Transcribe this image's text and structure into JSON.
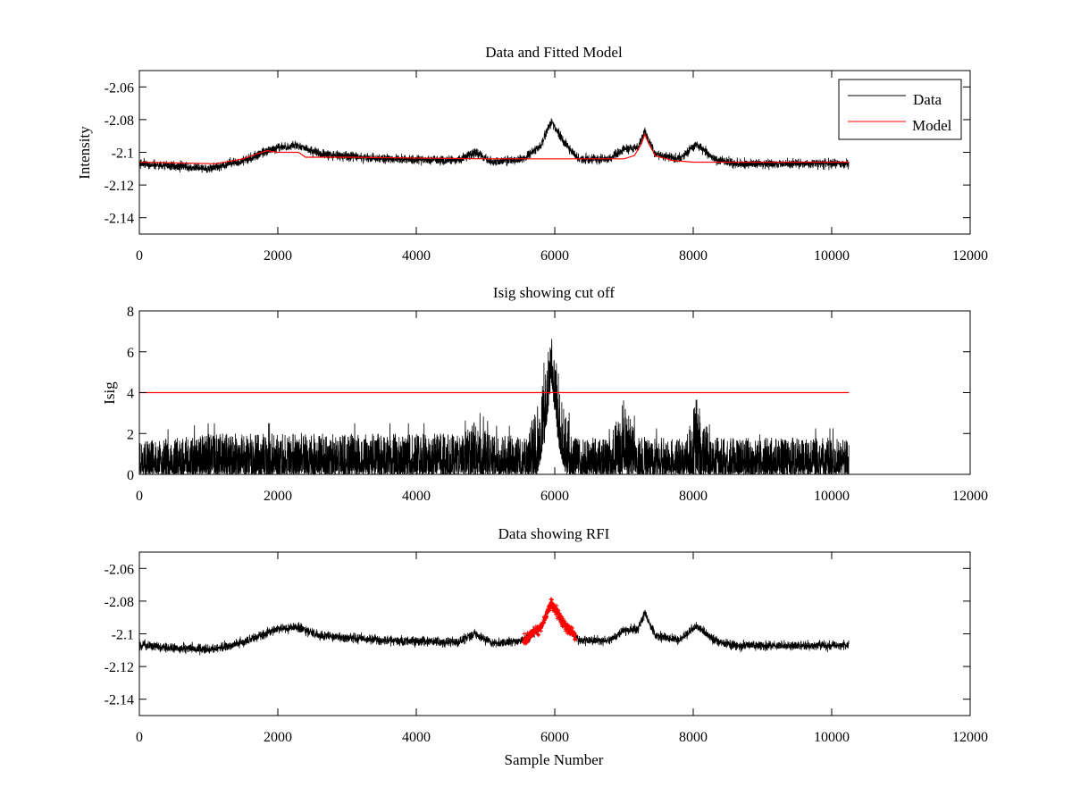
{
  "chart_data": [
    {
      "type": "line",
      "title": "Data and Fitted Model",
      "xlabel": "",
      "ylabel": "Intensity",
      "xlim": [
        0,
        12000
      ],
      "ylim": [
        -2.15,
        -2.05
      ],
      "xticks": [
        0,
        2000,
        4000,
        6000,
        8000,
        10000,
        12000
      ],
      "yticks": [
        -2.14,
        -2.12,
        -2.1,
        -2.08,
        -2.06
      ],
      "ytick_labels": [
        "-2.14",
        "-2.12",
        "-2.1",
        "-2.08",
        "-2.06"
      ],
      "legend": {
        "position": "top-right",
        "entries": [
          "Data",
          "Model"
        ]
      },
      "series": [
        {
          "name": "Data",
          "color": "#000000",
          "n_samples": 10250,
          "noise_amplitude": 0.005,
          "baseline_points": [
            [
              0,
              -2.107
            ],
            [
              1000,
              -2.11
            ],
            [
              1500,
              -2.105
            ],
            [
              2000,
              -2.097
            ],
            [
              2300,
              -2.096
            ],
            [
              2600,
              -2.101
            ],
            [
              3500,
              -2.104
            ],
            [
              4600,
              -2.105
            ],
            [
              4850,
              -2.1
            ],
            [
              5100,
              -2.106
            ],
            [
              5550,
              -2.104
            ],
            [
              5800,
              -2.096
            ],
            [
              5950,
              -2.081
            ],
            [
              6150,
              -2.095
            ],
            [
              6350,
              -2.104
            ],
            [
              6800,
              -2.104
            ],
            [
              7000,
              -2.098
            ],
            [
              7200,
              -2.097
            ],
            [
              7300,
              -2.087
            ],
            [
              7450,
              -2.101
            ],
            [
              7800,
              -2.104
            ],
            [
              8050,
              -2.095
            ],
            [
              8300,
              -2.104
            ],
            [
              8600,
              -2.107
            ],
            [
              10250,
              -2.107
            ]
          ]
        },
        {
          "name": "Model",
          "color": "#ff0000",
          "points": [
            [
              0,
              -2.106
            ],
            [
              1100,
              -2.107
            ],
            [
              1500,
              -2.104
            ],
            [
              1700,
              -2.101
            ],
            [
              1850,
              -2.099
            ],
            [
              2000,
              -2.1
            ],
            [
              2300,
              -2.1
            ],
            [
              2400,
              -2.103
            ],
            [
              3000,
              -2.103
            ],
            [
              5000,
              -2.104
            ],
            [
              7000,
              -2.104
            ],
            [
              7150,
              -2.102
            ],
            [
              7250,
              -2.095
            ],
            [
              7300,
              -2.089
            ],
            [
              7350,
              -2.094
            ],
            [
              7450,
              -2.102
            ],
            [
              7700,
              -2.105
            ],
            [
              8000,
              -2.106
            ],
            [
              10250,
              -2.106
            ]
          ]
        }
      ]
    },
    {
      "type": "line",
      "title": "Isig showing cut off",
      "xlabel": "",
      "ylabel": "Isig",
      "xlim": [
        0,
        12000
      ],
      "ylim": [
        0,
        8
      ],
      "xticks": [
        0,
        2000,
        4000,
        6000,
        8000,
        10000,
        12000
      ],
      "yticks": [
        0,
        2,
        4,
        6,
        8
      ],
      "ytick_labels": [
        "0",
        "2",
        "4",
        "6",
        "8"
      ],
      "series": [
        {
          "name": "Isig",
          "color": "#000000",
          "n_samples": 10250,
          "envelope_points": [
            [
              0,
              1.6
            ],
            [
              1000,
              2.0
            ],
            [
              2000,
              2.0
            ],
            [
              4600,
              2.0
            ],
            [
              4850,
              2.6
            ],
            [
              5100,
              1.9
            ],
            [
              5600,
              1.9
            ],
            [
              5800,
              4.0
            ],
            [
              5950,
              7.0
            ],
            [
              6100,
              4.0
            ],
            [
              6250,
              1.8
            ],
            [
              6800,
              1.8
            ],
            [
              7000,
              3.8
            ],
            [
              7200,
              1.8
            ],
            [
              7900,
              1.8
            ],
            [
              8050,
              3.9
            ],
            [
              8250,
              1.8
            ],
            [
              10250,
              1.8
            ]
          ],
          "floor_points": [
            [
              0,
              0
            ],
            [
              5750,
              0
            ],
            [
              5850,
              1.5
            ],
            [
              5950,
              4.5
            ],
            [
              6050,
              1.5
            ],
            [
              6150,
              0
            ],
            [
              10250,
              0
            ]
          ]
        },
        {
          "name": "Cut off",
          "color": "#ff0000",
          "points": [
            [
              0,
              4
            ],
            [
              10250,
              4
            ]
          ]
        }
      ]
    },
    {
      "type": "line",
      "title": "Data showing RFI",
      "xlabel": "Sample Number",
      "ylabel": "",
      "xlim": [
        0,
        12000
      ],
      "ylim": [
        -2.15,
        -2.05
      ],
      "xticks": [
        0,
        2000,
        4000,
        6000,
        8000,
        10000,
        12000
      ],
      "yticks": [
        -2.14,
        -2.12,
        -2.1,
        -2.08,
        -2.06
      ],
      "ytick_labels": [
        "-2.14",
        "-2.12",
        "-2.1",
        "-2.08",
        "-2.06"
      ],
      "series": [
        {
          "name": "Data",
          "color": "#000000",
          "n_samples": 10250,
          "noise_amplitude": 0.005,
          "baseline_points": [
            [
              0,
              -2.107
            ],
            [
              1000,
              -2.11
            ],
            [
              1500,
              -2.105
            ],
            [
              2000,
              -2.097
            ],
            [
              2300,
              -2.096
            ],
            [
              2600,
              -2.101
            ],
            [
              3500,
              -2.104
            ],
            [
              4600,
              -2.105
            ],
            [
              4850,
              -2.1
            ],
            [
              5100,
              -2.106
            ],
            [
              5550,
              -2.104
            ],
            [
              5800,
              -2.096
            ],
            [
              5950,
              -2.081
            ],
            [
              6150,
              -2.095
            ],
            [
              6350,
              -2.104
            ],
            [
              6800,
              -2.104
            ],
            [
              7000,
              -2.098
            ],
            [
              7200,
              -2.097
            ],
            [
              7300,
              -2.087
            ],
            [
              7450,
              -2.101
            ],
            [
              7800,
              -2.104
            ],
            [
              8050,
              -2.095
            ],
            [
              8300,
              -2.104
            ],
            [
              8600,
              -2.107
            ],
            [
              10250,
              -2.107
            ]
          ]
        },
        {
          "name": "RFI",
          "color": "#ff0000",
          "marker": "+",
          "range": [
            5550,
            6300
          ]
        }
      ]
    }
  ]
}
